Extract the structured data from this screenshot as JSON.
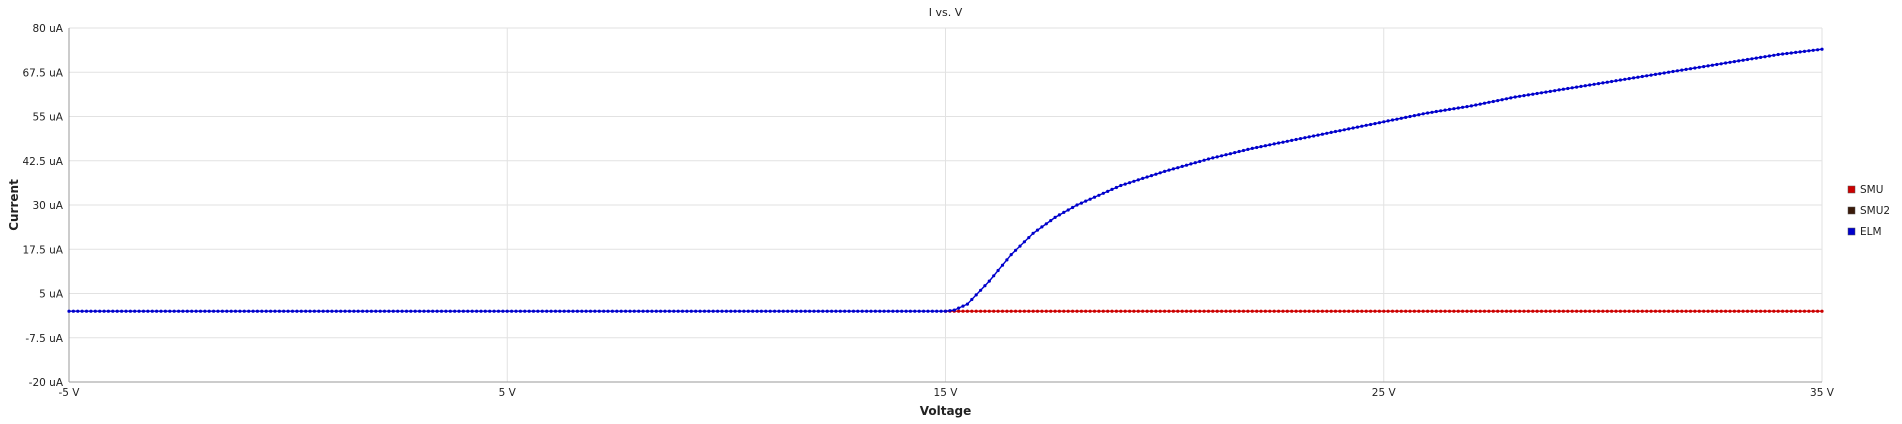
{
  "chart_data": {
    "type": "line",
    "title": "I vs. V",
    "xlabel": "Voltage",
    "ylabel": "Current",
    "xlim": [
      -5,
      35
    ],
    "ylim": [
      -20,
      80
    ],
    "x_ticks": [
      "-5 V",
      "5 V",
      "15 V",
      "25 V",
      "35 V"
    ],
    "x_tick_values": [
      -5,
      5,
      15,
      25,
      35
    ],
    "y_ticks": [
      "-20 uA",
      "-7.5 uA",
      "5 uA",
      "17.5 uA",
      "30 uA",
      "42.5 uA",
      "55 uA",
      "67.5 uA",
      "80 uA"
    ],
    "y_tick_values": [
      -20,
      -7.5,
      5,
      17.5,
      30,
      42.5,
      55,
      67.5,
      80
    ],
    "grid": true,
    "legend_position": "right",
    "series": [
      {
        "name": "SMU",
        "color": "#cc0000",
        "x": [
          15,
          35
        ],
        "y": [
          0,
          0
        ]
      },
      {
        "name": "SMU2",
        "color": "#3a1a0a",
        "x": [],
        "y": []
      },
      {
        "name": "ELM",
        "color": "#0000cc",
        "x": [
          -5,
          15,
          15.2,
          15.5,
          16,
          16.5,
          17,
          17.5,
          18,
          19,
          20,
          21,
          22,
          23,
          24,
          25,
          26,
          27,
          28,
          29,
          30,
          31,
          32,
          33,
          34,
          35
        ],
        "y": [
          0,
          0,
          0.3,
          2,
          8.5,
          16,
          22,
          26.5,
          30,
          35.5,
          39.5,
          43,
          46,
          48.5,
          51,
          53.5,
          56,
          58,
          60.5,
          62.5,
          64.5,
          66.5,
          68.5,
          70.5,
          72.5,
          74
        ]
      }
    ]
  }
}
